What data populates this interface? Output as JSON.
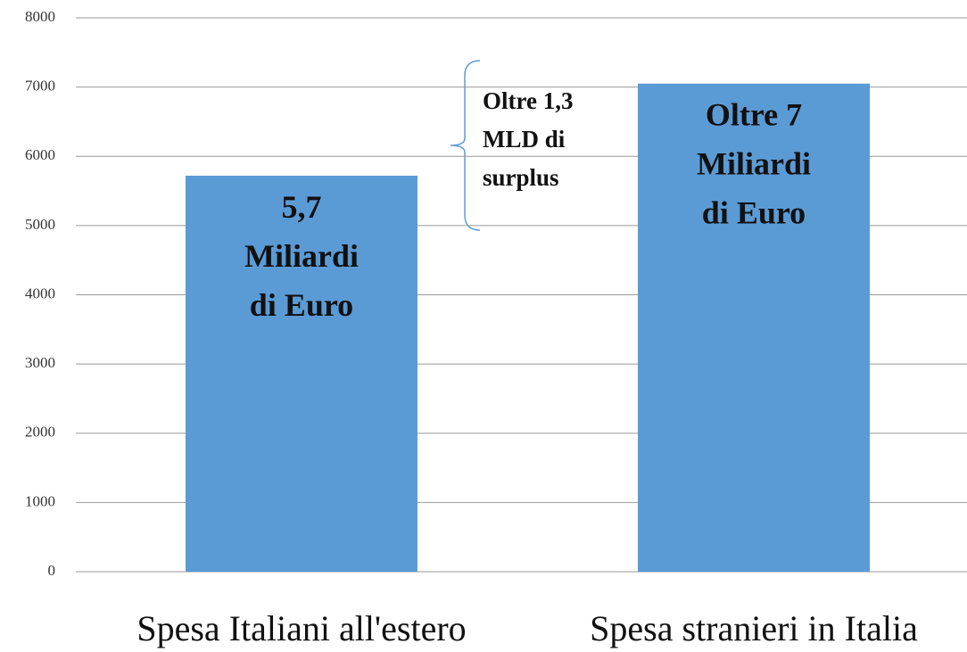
{
  "chart_data": {
    "type": "bar",
    "categories": [
      "Spesa Italiani all'estero",
      "Spesa stranieri in Italia"
    ],
    "values": [
      5720,
      7050
    ],
    "value_labels": [
      "5,7\nMiliardi\ndi Euro",
      "Oltre 7\nMiliardi\ndi Euro"
    ],
    "color": "#5b9bd5",
    "ylim": [
      0,
      8000
    ],
    "yticks": [
      0,
      1000,
      2000,
      3000,
      4000,
      5000,
      6000,
      7000,
      8000
    ],
    "grid": true,
    "annotation": "Oltre 1,3\nMLD di\nsurplus"
  }
}
